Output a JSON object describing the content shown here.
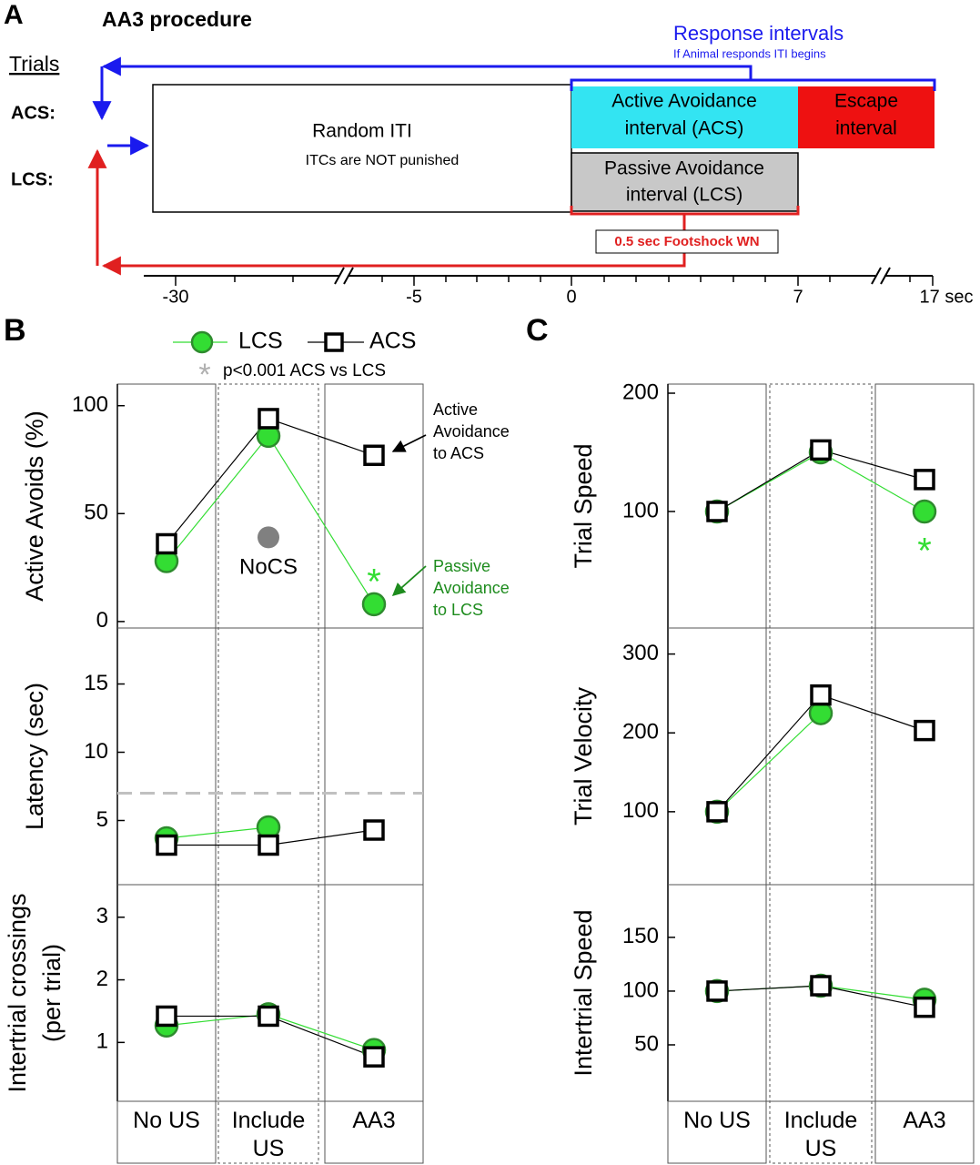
{
  "panel_a": {
    "label": "A",
    "title": "AA3 procedure",
    "trials_label": "Trials",
    "acs_label": "ACS:",
    "lcs_label": "LCS:",
    "iti_box": {
      "title": "Random ITI",
      "note": "ITCs are NOT punished"
    },
    "acs_box": [
      "Active Avoidance",
      "interval (ACS)"
    ],
    "escape_box": [
      "Escape",
      "interval"
    ],
    "lcs_box": [
      "Passive Avoidance",
      "interval (LCS)"
    ],
    "response_intervals": {
      "title": "Response intervals",
      "note": "If Animal responds ITI begins"
    },
    "footshock": "0.5 sec Footshock WN",
    "timeline_ticks": [
      "-30",
      "-5",
      "0",
      "7",
      "17 sec"
    ]
  },
  "chart_data": [
    {
      "type": "line",
      "label": "B",
      "categories": [
        "No US",
        "Include US",
        "AA3"
      ],
      "legend": true,
      "significance_note": {
        "symbol": "*",
        "text": "p<0.001 ACS vs LCS",
        "color": "#b0b0b0"
      },
      "panels": [
        {
          "ylabel": [
            "Active Avoids (%)"
          ],
          "ylim": [
            -3,
            110
          ],
          "yticks": [
            0,
            50,
            100
          ],
          "series": [
            {
              "name": "LCS",
              "color": "#33dd33",
              "edge": "#2e8b2e",
              "marker": "circle",
              "values": [
                28,
                86,
                8
              ]
            },
            {
              "name": "ACS",
              "color": "#000000",
              "marker": "square",
              "values": [
                36,
                94,
                77
              ]
            }
          ],
          "extra_point": {
            "label": "NoCS",
            "category": "Include US",
            "value": 39,
            "color": "#808080"
          },
          "significance": [
            {
              "symbol": "*",
              "category": "AA3",
              "color": "#33dd33"
            }
          ],
          "annotations": [
            {
              "lines": [
                "Active",
                "Avoidance",
                "to ACS"
              ],
              "color": "#000000"
            },
            {
              "lines": [
                "Passive",
                "Avoidance",
                "to LCS"
              ],
              "color": "#1e8c1e"
            }
          ]
        },
        {
          "ylabel": [
            "Latency (sec)"
          ],
          "ylim": [
            0.3,
            19.1
          ],
          "yticks": [
            5,
            10,
            15
          ],
          "reference_line": 7,
          "series": [
            {
              "color": "#33dd33",
              "edge": "#2e8b2e",
              "marker": "circle",
              "values": [
                3.7,
                4.5,
                null
              ]
            },
            {
              "color": "#000000",
              "marker": "square",
              "values": [
                3.2,
                3.2,
                4.3
              ]
            }
          ]
        },
        {
          "ylabel": [
            "Intertrial crossings",
            "(per trial)"
          ],
          "ylim": [
            0.06,
            3.52
          ],
          "yticks": [
            1,
            2,
            3
          ],
          "series": [
            {
              "color": "#33dd33",
              "edge": "#2e8b2e",
              "marker": "circle",
              "values": [
                1.27,
                1.45,
                0.88
              ]
            },
            {
              "color": "#000000",
              "marker": "square",
              "values": [
                1.42,
                1.42,
                0.77
              ]
            }
          ]
        }
      ]
    },
    {
      "type": "line",
      "label": "C",
      "categories": [
        "No US",
        "Include US",
        "AA3"
      ],
      "panels": [
        {
          "ylabel": [
            "Trial Speed"
          ],
          "ylim": [
            1.5,
            207.7
          ],
          "yticks": [
            100,
            200
          ],
          "series": [
            {
              "color": "#33dd33",
              "edge": "#2e8b2e",
              "marker": "circle",
              "values": [
                100,
                150,
                100
              ]
            },
            {
              "color": "#000000",
              "marker": "square",
              "values": [
                100,
                152,
                127
              ]
            }
          ],
          "significance": [
            {
              "symbol": "*",
              "category": "AA3",
              "color": "#33dd33"
            }
          ]
        },
        {
          "ylabel": [
            "Trial Velocity"
          ],
          "ylim": [
            7.5,
            333
          ],
          "yticks": [
            100,
            200,
            300
          ],
          "series": [
            {
              "color": "#33dd33",
              "edge": "#2e8b2e",
              "marker": "circle",
              "values": [
                100,
                225,
                null
              ]
            },
            {
              "color": "#000000",
              "marker": "square",
              "values": [
                100,
                248,
                203
              ]
            }
          ]
        },
        {
          "ylabel": [
            "Intertrial Speed"
          ],
          "ylim": [
            -2.5,
            199
          ],
          "yticks": [
            50,
            100,
            150
          ],
          "series": [
            {
              "color": "#33dd33",
              "edge": "#2e8b2e",
              "marker": "circle",
              "values": [
                100,
                105,
                92
              ]
            },
            {
              "color": "#000000",
              "marker": "square",
              "values": [
                100,
                105,
                85
              ]
            }
          ]
        }
      ]
    }
  ]
}
